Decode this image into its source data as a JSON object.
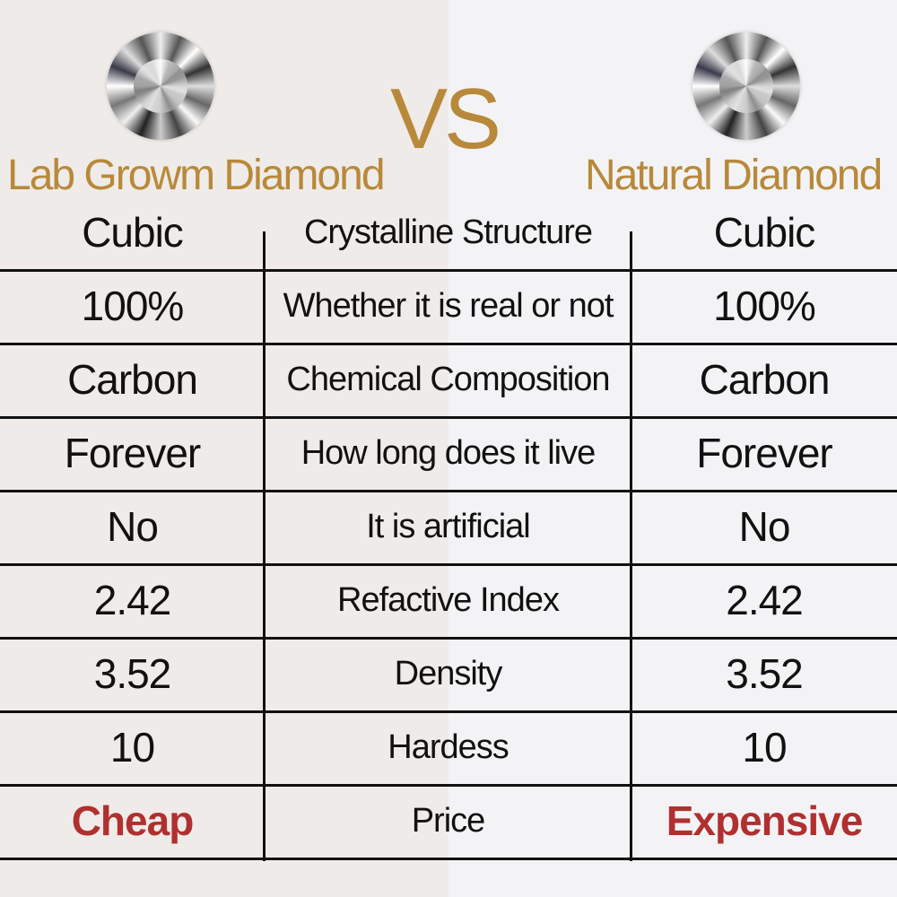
{
  "header": {
    "left_title": "Lab Growm Diamond",
    "vs": "VS",
    "right_title": "Natural Diamond",
    "icons": [
      "diamond-image",
      "diamond-image"
    ]
  },
  "colors": {
    "gold": "#b8893a",
    "highlight_red": "#b03030"
  },
  "rows": [
    {
      "left": "Cubic",
      "attribute": "Crystalline Structure",
      "right": "Cubic"
    },
    {
      "left": "100%",
      "attribute": "Whether it is real or not",
      "right": "100%"
    },
    {
      "left": "Carbon",
      "attribute": "Chemical Composition",
      "right": "Carbon"
    },
    {
      "left": "Forever",
      "attribute": "How long does it live",
      "right": "Forever"
    },
    {
      "left": "No",
      "attribute": "It is artificial",
      "right": "No"
    },
    {
      "left": "2.42",
      "attribute": "Refactive Index",
      "right": "2.42"
    },
    {
      "left": "3.52",
      "attribute": "Density",
      "right": "3.52"
    },
    {
      "left": "10",
      "attribute": "Hardess",
      "right": "10"
    },
    {
      "left": "Cheap",
      "attribute": "Price",
      "right": "Expensive"
    }
  ]
}
